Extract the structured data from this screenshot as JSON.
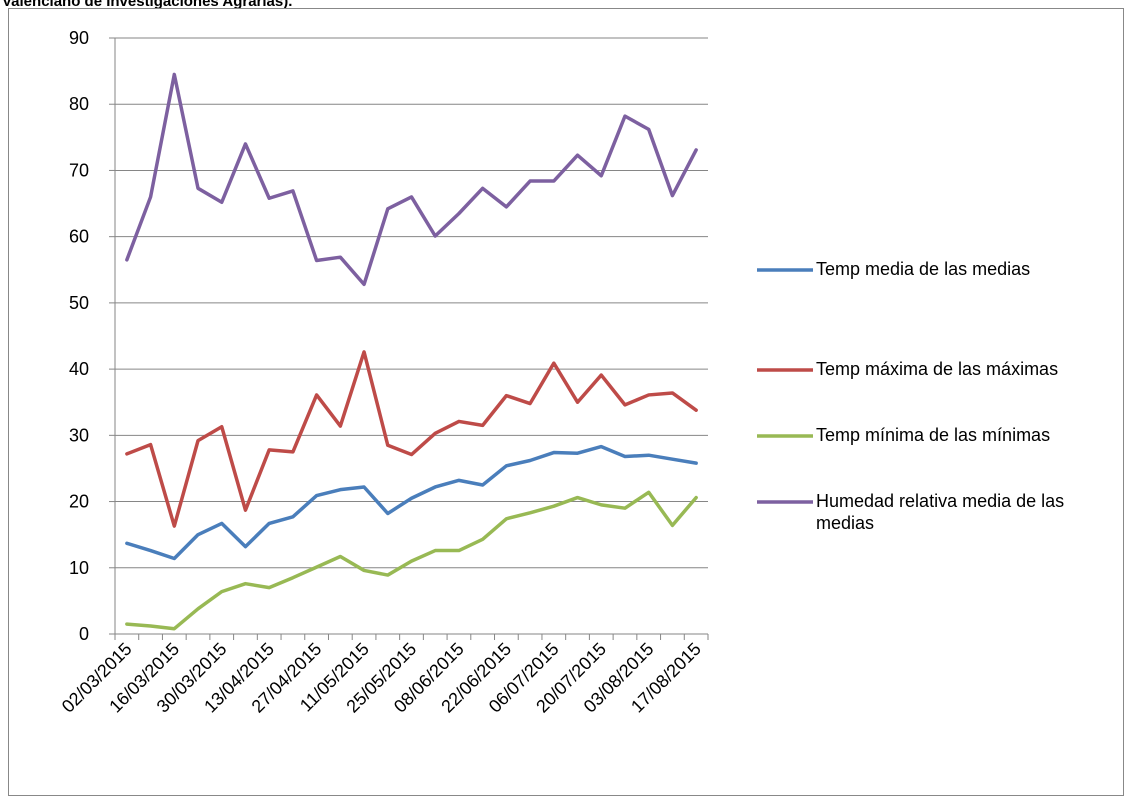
{
  "caption": "Valenciano de Investigaciones Agrarias).",
  "chart_data": {
    "type": "line",
    "categories": [
      "02/03/2015",
      null,
      "16/03/2015",
      null,
      "30/03/2015",
      null,
      "13/04/2015",
      null,
      "27/04/2015",
      null,
      "11/05/2015",
      null,
      "25/05/2015",
      null,
      "08/06/2015",
      null,
      "22/06/2015",
      null,
      "06/07/2015",
      null,
      "20/07/2015",
      null,
      "03/08/2015",
      null,
      "17/08/2015"
    ],
    "series": [
      {
        "name": "Temp media de las medias",
        "color": "#4a7ebb",
        "values": [
          13.7,
          12.6,
          11.4,
          15,
          16.7,
          13.2,
          16.7,
          17.7,
          20.9,
          21.8,
          22.2,
          18.2,
          20.5,
          22.2,
          23.2,
          22.5,
          25.4,
          26.2,
          27.4,
          27.3,
          28.3,
          26.8,
          27,
          26.4,
          25.8
        ]
      },
      {
        "name": "Temp máxima de las máximas",
        "color": "#be4b48",
        "values": [
          27.2,
          28.6,
          16.3,
          29.2,
          31.3,
          18.7,
          27.8,
          27.5,
          36.1,
          31.4,
          42.6,
          28.5,
          27.1,
          30.3,
          32.1,
          31.5,
          36,
          34.8,
          40.9,
          35,
          39.1,
          34.6,
          36.1,
          36.4,
          33.8
        ]
      },
      {
        "name": "Temp mínima de las mínimas",
        "color": "#98b954",
        "values": [
          1.5,
          1.2,
          0.8,
          3.8,
          6.4,
          7.6,
          7,
          8.5,
          10.1,
          11.7,
          9.6,
          8.9,
          11,
          12.6,
          12.6,
          14.3,
          17.4,
          18.3,
          19.3,
          20.6,
          19.5,
          19,
          21.4,
          16.4,
          20.6
        ]
      },
      {
        "name": "Humedad relativa media de las medias",
        "color": "#7d60a0",
        "values": [
          56.5,
          66,
          84.5,
          67.3,
          65.2,
          74,
          65.8,
          66.9,
          56.4,
          56.9,
          52.8,
          64.2,
          66,
          60.1,
          63.5,
          67.3,
          64.5,
          68.4,
          68.4,
          72.3,
          69.2,
          78.2,
          76.2,
          66.2,
          73.1
        ]
      }
    ],
    "ylim": [
      0,
      90
    ],
    "yticks": [
      0,
      10,
      20,
      30,
      40,
      50,
      60,
      70,
      80,
      90
    ],
    "grid": true,
    "legend": "right"
  }
}
